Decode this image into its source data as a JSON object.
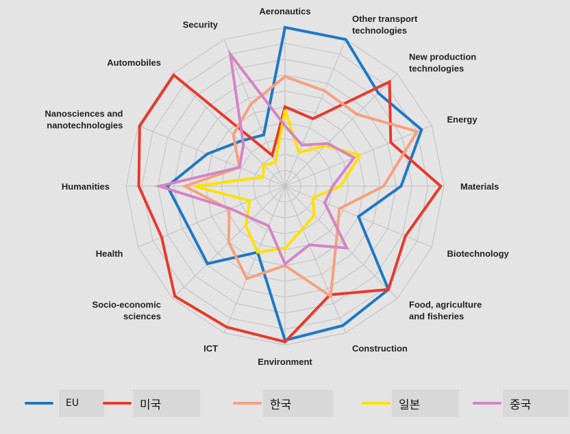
{
  "chart_data": {
    "type": "radar",
    "title": "",
    "axes": [
      "Aeronautics",
      "Other transport\ntechnologies",
      "New production\ntechnologies",
      "Energy",
      "Materials",
      "Biotechnology",
      "Food, agriculture\nand fisheries",
      "Construction",
      "Environment",
      "ICT",
      "Socio-economic\nsciences",
      "Health",
      "Humanities",
      "Nanosciences and\nnanotechnologies",
      "Automobiles",
      "Security"
    ],
    "rmax": 10,
    "grid_rings": 10,
    "grid": true,
    "legend_position": "bottom",
    "series": [
      {
        "name": "EU",
        "color": "#1f77c4",
        "values": [
          10,
          10,
          8.3,
          9.3,
          7.3,
          5.0,
          9.2,
          9.5,
          9.7,
          4.5,
          6.9,
          6.6,
          7.4,
          5.3,
          4.0,
          3.5
        ]
      },
      {
        "name": "미국",
        "color": "#e8392a",
        "values": [
          5.0,
          4.6,
          9.3,
          7.2,
          9.8,
          8.2,
          9.2,
          7.4,
          9.8,
          9.6,
          9.8,
          8.4,
          9.2,
          9.9,
          9.9,
          2.1
        ]
      },
      {
        "name": "한국",
        "color": "#f5a07f",
        "values": [
          6.9,
          6.5,
          6.4,
          9.0,
          6.2,
          3.7,
          4.6,
          7.5,
          5.0,
          6.3,
          5.0,
          3.8,
          6.3,
          3.1,
          4.6,
          5.6
        ]
      },
      {
        "name": "일본",
        "color": "#ffe000",
        "values": [
          4.8,
          2.3,
          3.6,
          5.1,
          3.5,
          1.9,
          2.6,
          2.9,
          3.9,
          4.5,
          3.5,
          2.4,
          5.7,
          1.5,
          1.9,
          1.6
        ]
      },
      {
        "name": "중국",
        "color": "#d484c4",
        "values": [
          3.8,
          2.8,
          3.8,
          4.7,
          3.0,
          2.7,
          5.5,
          4.0,
          4.9,
          2.7,
          2.9,
          3.7,
          7.9,
          3.1,
          3.7,
          9.0
        ]
      }
    ]
  }
}
